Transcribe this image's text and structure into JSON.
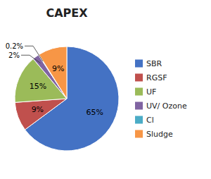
{
  "chart_data": {
    "type": "pie",
    "title": "CAPEX",
    "categories": [
      "SBR",
      "RGSF",
      "UF",
      "UV/ Ozone",
      "Cl",
      "Sludge"
    ],
    "values": [
      65,
      9,
      15,
      2,
      0.2,
      9
    ],
    "value_labels": [
      "65%",
      "9%",
      "15%",
      "2%",
      "0.2%",
      "9%"
    ],
    "colors": [
      "#4472C4",
      "#C0504D",
      "#9BBB59",
      "#8064A2",
      "#4BACC6",
      "#F79646"
    ],
    "data_labels": true,
    "legend": "right"
  }
}
